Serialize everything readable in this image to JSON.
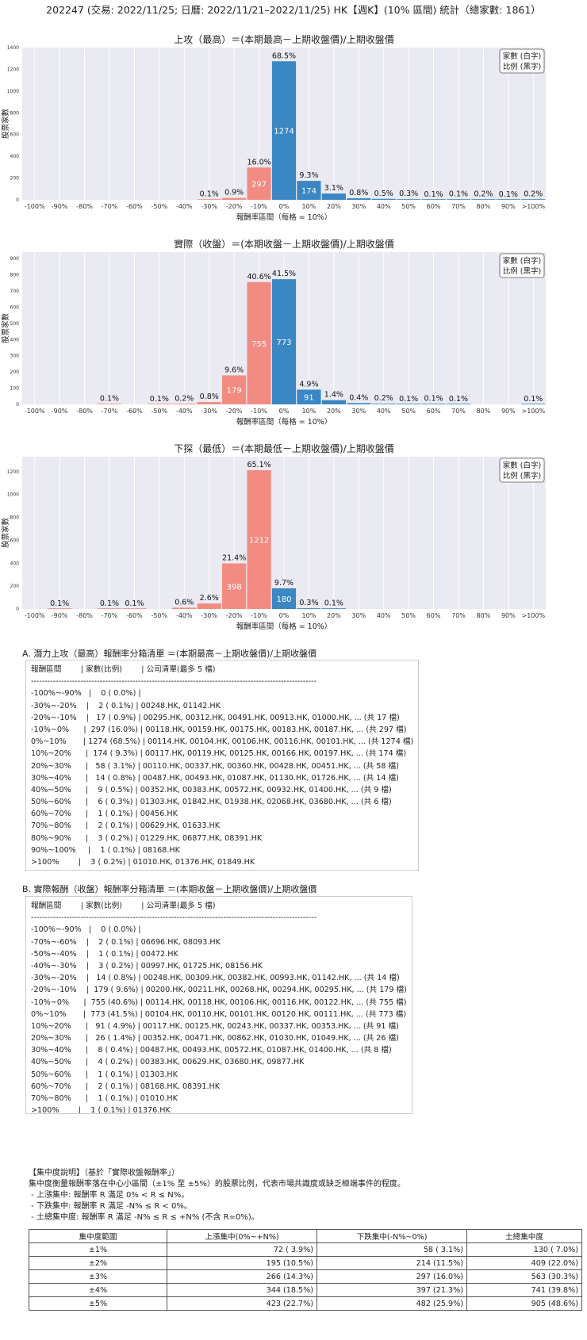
{
  "header": {
    "title": "202247 (交易: 2022/11/25; 日曆: 2022/11/21–2022/11/25) HK【週K】(10% 區間) 統計（總家數: 1861）"
  },
  "legend": {
    "line1": "家數 (白字)",
    "line2": "比例 (黑字)"
  },
  "colors": {
    "negative": "#f28b82",
    "positive": "#3a87c4",
    "plot_bg": "#eaeaf2",
    "grid": "#ffffff"
  },
  "chart_data": [
    {
      "type": "bar",
      "title": "上攻（最高）＝(本期最高－上期收盤價)/上期收盤價",
      "xlabel": "報酬率區間（每格 = 10%）",
      "ylabel": "股票家數",
      "categories": [
        "-100%",
        "-90%",
        "-80%",
        "-70%",
        "-60%",
        "-50%",
        "-40%",
        "-30%",
        "-20%",
        "-10%",
        "0%",
        "10%",
        "20%",
        "30%",
        "40%",
        "50%",
        "60%",
        "70%",
        "80%",
        "90%",
        ">100%"
      ],
      "values": [
        0,
        0,
        0,
        0,
        0,
        0,
        0,
        2,
        17,
        297,
        1274,
        174,
        58,
        14,
        9,
        6,
        1,
        2,
        3,
        1,
        3
      ],
      "pct_labels": [
        "",
        "",
        "",
        "",
        "",
        "",
        "",
        "0.1%",
        "0.9%",
        "16.0%",
        "68.5%",
        "9.3%",
        "3.1%",
        "0.8%",
        "0.5%",
        "0.3%",
        "0.1%",
        "0.1%",
        "0.2%",
        "0.1%",
        "0.2%"
      ],
      "yticks": [
        0,
        200,
        400,
        600,
        800,
        1000,
        1200,
        1400
      ],
      "ylim": [
        0,
        1400
      ],
      "grid": true,
      "legend_position": "top-right"
    },
    {
      "type": "bar",
      "title": "實際（收盤）＝(本期收盤－上期收盤價)/上期收盤價",
      "xlabel": "報酬率區間（每格 = 10%）",
      "ylabel": "股票家數",
      "categories": [
        "-100%",
        "-90%",
        "-80%",
        "-70%",
        "-60%",
        "-50%",
        "-40%",
        "-30%",
        "-20%",
        "-10%",
        "0%",
        "10%",
        "20%",
        "30%",
        "40%",
        "50%",
        "60%",
        "70%",
        "80%",
        "90%",
        ">100%"
      ],
      "values": [
        0,
        0,
        0,
        2,
        0,
        1,
        3,
        14,
        179,
        755,
        773,
        91,
        26,
        8,
        4,
        1,
        2,
        1,
        0,
        0,
        1
      ],
      "pct_labels": [
        "",
        "",
        "",
        "0.1%",
        "",
        "0.1%",
        "0.2%",
        "0.8%",
        "9.6%",
        "40.6%",
        "41.5%",
        "4.9%",
        "1.4%",
        "0.4%",
        "0.2%",
        "0.1%",
        "0.1%",
        "0.1%",
        "",
        "",
        "0.1%"
      ],
      "yticks": [
        0,
        100,
        200,
        300,
        400,
        500,
        600,
        700,
        800,
        900
      ],
      "ylim": [
        0,
        940
      ],
      "grid": true,
      "legend_position": "top-right"
    },
    {
      "type": "bar",
      "title": "下探（最低）＝(本期最低－上期收盤價)/上期收盤價",
      "xlabel": "報酬率區間（每格 = 10%）",
      "ylabel": "股票家數",
      "categories": [
        "-100%",
        "-90%",
        "-80%",
        "-70%",
        "-60%",
        "-50%",
        "-40%",
        "-30%",
        "-20%",
        "-10%",
        "0%",
        "10%",
        "20%",
        "30%",
        "40%",
        "50%",
        "60%",
        "70%",
        "80%",
        "90%",
        ">100%"
      ],
      "values": [
        0,
        1,
        0,
        1,
        1,
        0,
        11,
        48,
        398,
        1212,
        180,
        6,
        2,
        0,
        0,
        0,
        0,
        0,
        0,
        0,
        0
      ],
      "pct_labels": [
        "",
        "0.1%",
        "",
        "0.1%",
        "0.1%",
        "",
        "0.6%",
        "2.6%",
        "21.4%",
        "65.1%",
        "9.7%",
        "0.3%",
        "0.1%",
        "",
        "",
        "",
        "",
        "",
        "",
        "",
        ""
      ],
      "yticks": [
        0,
        200,
        400,
        600,
        800,
        1000,
        1200
      ],
      "ylim": [
        0,
        1330
      ],
      "grid": true,
      "legend_position": "top-right"
    }
  ],
  "section_a": {
    "title": "A. 潛力上攻（最高）報酬率分箱清單 ＝(本期最高－上期收盤價)/上期收盤價",
    "lines": [
      "報酬區間        | 家數(比例)        | 公司清單(最多 5 檔)",
      "--------------------------------------------------------------------------------------------------------",
      "-100%~-90%   |    0 ( 0.0%) |",
      "-30%~-20%    |    2 ( 0.1%) | 00248.HK, 01142.HK",
      "-20%~-10%    |   17 ( 0.9%) | 00295.HK, 00312.HK, 00491.HK, 00913.HK, 01000.HK, ... (共 17 檔)",
      "-10%~0%      |  297 (16.0%) | 00118.HK, 00159.HK, 00175.HK, 00183.HK, 00187.HK, ... (共 297 檔)",
      "0%~10%       | 1274 (68.5%) | 00114.HK, 00104.HK, 00106.HK, 00116.HK, 00101.HK, ... (共 1274 檔)",
      "10%~20%      |  174 ( 9.3%) | 00117.HK, 00119.HK, 00125.HK, 00166.HK, 00197.HK, ... (共 174 檔)",
      "20%~30%      |   58 ( 3.1%) | 00110.HK, 00337.HK, 00360.HK, 00428.HK, 00451.HK, ... (共 58 檔)",
      "30%~40%      |   14 ( 0.8%) | 00487.HK, 00493.HK, 01087.HK, 01130.HK, 01726.HK, ... (共 14 檔)",
      "40%~50%      |    9 ( 0.5%) | 00352.HK, 00383.HK, 00572.HK, 00932.HK, 01400.HK, ... (共 9 檔)",
      "50%~60%      |    6 ( 0.3%) | 01303.HK, 01842.HK, 01938.HK, 02068.HK, 03680.HK, ... (共 6 檔)",
      "60%~70%      |    1 ( 0.1%) | 00456.HK",
      "70%~80%      |    2 ( 0.1%) | 00629.HK, 01633.HK",
      "80%~90%      |    3 ( 0.2%) | 01229.HK, 06877.HK, 08391.HK",
      "90%~100%     |    1 ( 0.1%) | 08168.HK",
      ">100%        |    3 ( 0.2%) | 01010.HK, 01376.HK, 01849.HK"
    ]
  },
  "section_b": {
    "title": "B. 實際報酬（收盤）報酬率分箱清單 ＝(本期收盤－上期收盤價)/上期收盤價",
    "lines": [
      "報酬區間        | 家數(比例)        | 公司清單(最多 5 檔)",
      "--------------------------------------------------------------------------------------------------------",
      "-100%~-90%   |    0 ( 0.0%) |",
      "-70%~-60%    |    2 ( 0.1%) | 06696.HK, 08093.HK",
      "-50%~-40%    |    1 ( 0.1%) | 00472.HK",
      "-40%~-30%    |    3 ( 0.2%) | 00997.HK, 01725.HK, 08156.HK",
      "-30%~-20%    |   14 ( 0.8%) | 00248.HK, 00309.HK, 00382.HK, 00993.HK, 01142.HK, ... (共 14 檔)",
      "-20%~-10%    |  179 ( 9.6%) | 00200.HK, 00211.HK, 00268.HK, 00294.HK, 00295.HK, ... (共 179 檔)",
      "-10%~0%      |  755 (40.6%) | 00114.HK, 00118.HK, 00106.HK, 00116.HK, 00122.HK, ... (共 755 檔)",
      "0%~10%       |  773 (41.5%) | 00104.HK, 00110.HK, 00101.HK, 00120.HK, 00111.HK, ... (共 773 檔)",
      "10%~20%      |   91 ( 4.9%) | 00117.HK, 00125.HK, 00243.HK, 00337.HK, 00353.HK, ... (共 91 檔)",
      "20%~30%      |   26 ( 1.4%) | 00352.HK, 00471.HK, 00862.HK, 01030.HK, 01049.HK, ... (共 26 檔)",
      "30%~40%      |    8 ( 0.4%) | 00487.HK, 00493.HK, 00572.HK, 01087.HK, 01400.HK, ... (共 8 檔)",
      "40%~50%      |    4 ( 0.2%) | 00383.HK, 00629.HK, 03680.HK, 09877.HK",
      "50%~60%      |    1 ( 0.1%) | 01303.HK",
      "60%~70%      |    2 ( 0.1%) | 08168.HK, 08391.HK",
      "70%~80%      |    1 ( 0.1%) | 01010.HK",
      ">100%        |    1 ( 0.1%) | 01376.HK"
    ]
  },
  "note": {
    "title": "【集中度說明】（基於「實際收盤報酬率」）",
    "desc": "集中度衡量報酬率落在中心小區間（±1% 至 ±5%）的股票比例，代表市場共識度或缺乏極端事件的程度。",
    "items": [
      " - 上漲集中: 報酬率 R 滿足 0% < R ≤ N%。",
      " - 下跌集中: 報酬率 R 滿足 -N% ≤ R < 0%。",
      " - 土總集中度: 報酬率 R 滿足 -N% ≤ R ≤ +N% (不含 R=0%)。"
    ]
  },
  "concentration": {
    "headers": [
      "集中度範圍",
      "上漲集中(0%~+N%)",
      "下跌集中(-N%~0%)",
      "土總集中度"
    ],
    "rows": [
      [
        "±1%",
        "72 ( 3.9%)",
        "58 ( 3.1%)",
        "130 ( 7.0%)"
      ],
      [
        "±2%",
        "195 (10.5%)",
        "214 (11.5%)",
        "409 (22.0%)"
      ],
      [
        "±3%",
        "266 (14.3%)",
        "297 (16.0%)",
        "563 (30.3%)"
      ],
      [
        "±4%",
        "344 (18.5%)",
        "397 (21.3%)",
        "741 (39.8%)"
      ],
      [
        "±5%",
        "423 (22.7%)",
        "482 (25.9%)",
        "905 (48.6%)"
      ]
    ]
  }
}
